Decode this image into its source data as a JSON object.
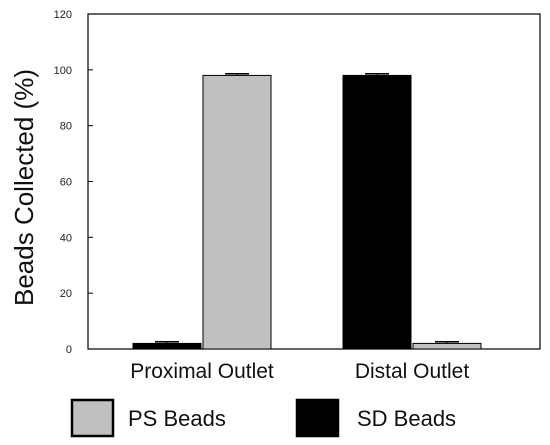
{
  "chart_data": {
    "type": "bar",
    "title": "",
    "xlabel": "",
    "ylabel": "Beads Collected (%)",
    "ylim": [
      0,
      120
    ],
    "yticks": [
      0,
      20,
      40,
      60,
      80,
      100,
      120
    ],
    "grid": false,
    "legend_position": "bottom",
    "categories": [
      "Proximal Outlet",
      "Distal Outlet"
    ],
    "series": [
      {
        "name": "SD Beads",
        "color": "#000000",
        "values": [
          2,
          98
        ],
        "errors": [
          0.6,
          0.6
        ]
      },
      {
        "name": "PS Beads",
        "color": "#c0c0c0",
        "values": [
          98,
          2
        ],
        "errors": [
          0.6,
          0.6
        ]
      }
    ]
  }
}
